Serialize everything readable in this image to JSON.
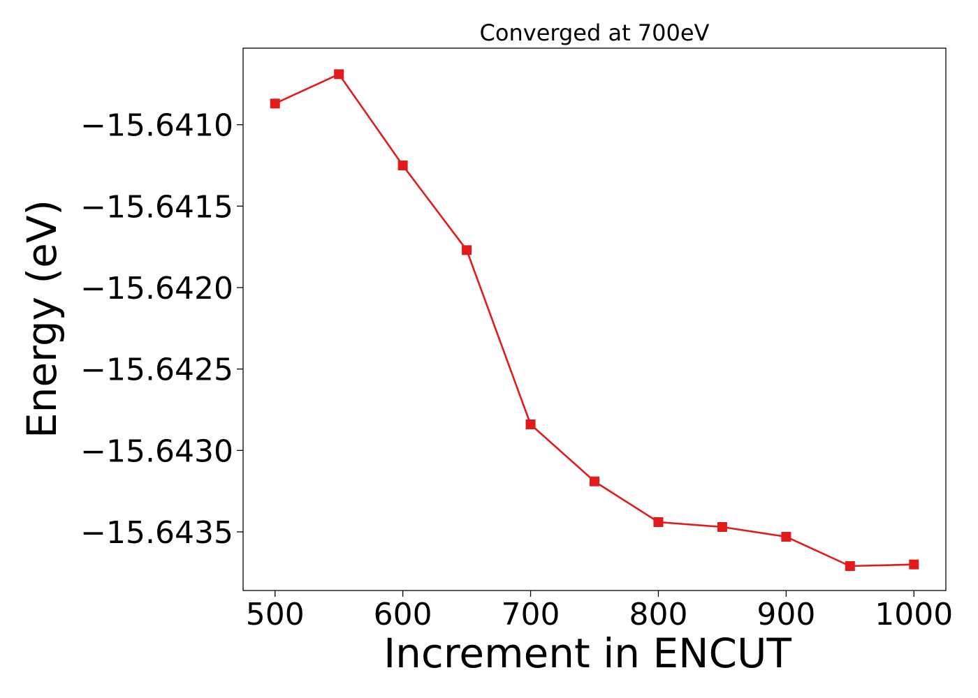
{
  "chart_data": {
    "type": "line",
    "title": "Converged at 700eV",
    "xlabel": "Increment in ENCUT",
    "ylabel": "Energy (eV)",
    "x": [
      500,
      550,
      600,
      650,
      700,
      750,
      800,
      850,
      900,
      950,
      1000
    ],
    "series": [
      {
        "values": [
          -15.64087,
          -15.64069,
          -15.64125,
          -15.64177,
          -15.64284,
          -15.64319,
          -15.64344,
          -15.64347,
          -15.64353,
          -15.64371,
          -15.6437
        ],
        "color": "#e31a1c",
        "marker": "square"
      }
    ],
    "xlim": [
      475,
      1025
    ],
    "ylim": [
      -15.64386,
      -15.64053
    ],
    "xticks": [
      500,
      600,
      700,
      800,
      900,
      1000
    ],
    "xtick_labels": [
      "500",
      "600",
      "700",
      "800",
      "900",
      "1000"
    ],
    "yticks": [
      -15.641,
      -15.6415,
      -15.642,
      -15.6425,
      -15.643,
      -15.6435
    ],
    "ytick_labels": [
      "−15.6410",
      "−15.6415",
      "−15.6420",
      "−15.6425",
      "−15.6430",
      "−15.6435"
    ],
    "grid": false,
    "legend": "none"
  }
}
